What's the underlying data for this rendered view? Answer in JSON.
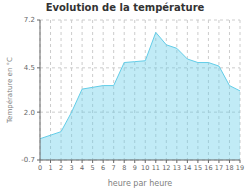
{
  "chart_data": {
    "type": "area",
    "title": "Evolution de la température",
    "x_label": "heure par heure",
    "y_label": "Température en °C",
    "x": [
      0,
      1,
      2,
      3,
      4,
      5,
      6,
      7,
      8,
      9,
      10,
      11,
      12,
      13,
      14,
      15,
      16,
      17,
      18,
      19
    ],
    "values": [
      0.5,
      0.7,
      0.9,
      2.0,
      3.3,
      3.4,
      3.5,
      3.5,
      4.8,
      4.85,
      4.9,
      6.5,
      5.8,
      5.6,
      5.0,
      4.8,
      4.8,
      4.6,
      3.5,
      3.2
    ],
    "color": "#63cde8",
    "xlim": [
      0,
      19
    ],
    "xticks": [
      0,
      1,
      2,
      3,
      4,
      5,
      6,
      7,
      8,
      9,
      10,
      11,
      12,
      13,
      14,
      15,
      16,
      17,
      18,
      19
    ],
    "ylim": [
      -0.7,
      7.2
    ],
    "yticks": [
      -0.7,
      {
        "value": 2.0,
        "label": "2.0"
      },
      4.5,
      7.2
    ],
    "grid": true
  }
}
